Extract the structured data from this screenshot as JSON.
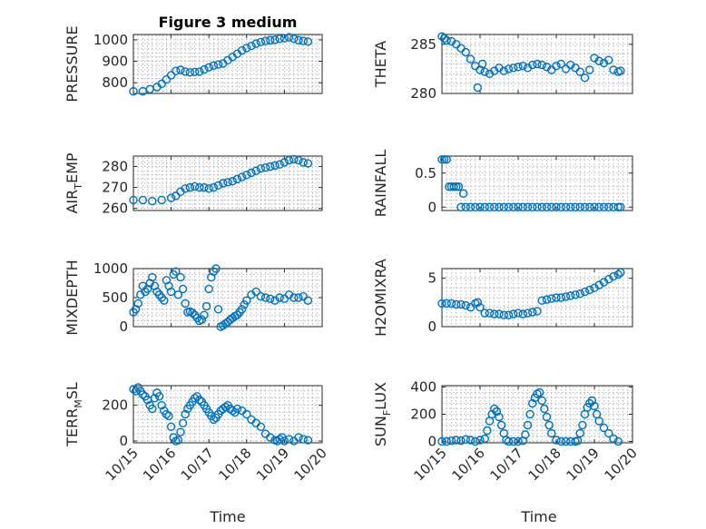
{
  "figure_title": "Figure 3 medium",
  "accent_color": "#0072BD",
  "chart_data": [
    {
      "type": "scatter",
      "ylabel": "PRESSURE",
      "ylabel_sub": "",
      "ylabel_tail": "",
      "ylim": [
        750,
        1025
      ],
      "yticks": [
        800,
        900,
        1000
      ],
      "xlim": [
        0,
        4
      ],
      "x": [
        0.0,
        0.2,
        0.35,
        0.5,
        0.6,
        0.7,
        0.8,
        0.9,
        1.0,
        1.1,
        1.2,
        1.3,
        1.4,
        1.5,
        1.6,
        1.7,
        1.8,
        1.9,
        2.0,
        2.1,
        2.2,
        2.3,
        2.4,
        2.5,
        2.6,
        2.7,
        2.8,
        2.9,
        3.0,
        3.1,
        3.2,
        3.3,
        3.4,
        3.5,
        3.6,
        3.7
      ],
      "y": [
        760,
        760,
        770,
        780,
        795,
        815,
        835,
        855,
        860,
        852,
        848,
        850,
        852,
        862,
        872,
        880,
        885,
        890,
        905,
        920,
        935,
        950,
        962,
        972,
        982,
        990,
        995,
        998,
        1000,
        1005,
        1008,
        1012,
        1005,
        998,
        995,
        992
      ]
    },
    {
      "type": "scatter",
      "ylabel": "THETA",
      "ylabel_sub": "",
      "ylabel_tail": "",
      "ylim": [
        280,
        286
      ],
      "yticks": [
        280,
        285
      ],
      "xlim": [
        0,
        4
      ],
      "x": [
        0.0,
        0.05,
        0.1,
        0.2,
        0.3,
        0.4,
        0.5,
        0.6,
        0.7,
        0.75,
        0.8,
        0.85,
        0.9,
        1.0,
        1.1,
        1.2,
        1.3,
        1.4,
        1.5,
        1.6,
        1.7,
        1.8,
        1.9,
        2.0,
        2.1,
        2.2,
        2.3,
        2.4,
        2.5,
        2.6,
        2.7,
        2.8,
        2.9,
        3.0,
        3.1,
        3.2,
        3.3,
        3.4,
        3.5,
        3.6,
        3.7,
        3.75
      ],
      "y": [
        285.8,
        285.6,
        285.4,
        285.3,
        285.0,
        284.6,
        284.2,
        283.5,
        282.8,
        280.6,
        282.4,
        283.0,
        282.2,
        282.0,
        282.3,
        282.6,
        282.3,
        282.5,
        282.6,
        282.7,
        282.8,
        282.6,
        282.9,
        283.0,
        282.9,
        282.7,
        282.4,
        282.8,
        283.0,
        282.5,
        282.9,
        282.6,
        282.2,
        281.6,
        282.4,
        283.6,
        283.3,
        283.1,
        283.4,
        282.4,
        282.2,
        282.3
      ]
    },
    {
      "type": "scatter",
      "ylabel": "AIR",
      "ylabel_sub": "T",
      "ylabel_tail": "EMP",
      "ylim": [
        259,
        285
      ],
      "yticks": [
        260,
        270,
        280
      ],
      "xlim": [
        0,
        4
      ],
      "x": [
        0.0,
        0.2,
        0.4,
        0.6,
        0.8,
        0.9,
        1.0,
        1.1,
        1.2,
        1.3,
        1.4,
        1.5,
        1.6,
        1.7,
        1.8,
        1.9,
        2.0,
        2.1,
        2.2,
        2.3,
        2.4,
        2.5,
        2.6,
        2.7,
        2.8,
        2.9,
        3.0,
        3.1,
        3.2,
        3.3,
        3.4,
        3.5,
        3.6,
        3.7
      ],
      "y": [
        264,
        264,
        263.5,
        264,
        265,
        266,
        268,
        269.5,
        270,
        270.5,
        270,
        270,
        269.5,
        270,
        271,
        272,
        272.5,
        273,
        274,
        275,
        276,
        277,
        278,
        279,
        279.5,
        280,
        280.5,
        281,
        282,
        283,
        283.5,
        283,
        282,
        281.5
      ]
    },
    {
      "type": "scatter",
      "ylabel": "RAINFALL",
      "ylabel_sub": "",
      "ylabel_tail": "",
      "ylim": [
        -0.05,
        0.75
      ],
      "yticks": [
        0,
        0.5
      ],
      "xlim": [
        0,
        4
      ],
      "x": [
        0.0,
        0.05,
        0.1,
        0.15,
        0.2,
        0.25,
        0.3,
        0.35,
        0.4,
        0.45,
        0.5,
        0.6,
        0.7,
        0.8,
        0.9,
        1.0,
        1.1,
        1.2,
        1.3,
        1.4,
        1.5,
        1.6,
        1.7,
        1.8,
        1.9,
        2.0,
        2.1,
        2.2,
        2.3,
        2.4,
        2.5,
        2.6,
        2.7,
        2.8,
        2.9,
        3.0,
        3.1,
        3.2,
        3.3,
        3.4,
        3.5,
        3.6,
        3.7,
        3.75
      ],
      "y": [
        0.7,
        0.7,
        0.7,
        0.3,
        0.3,
        0.3,
        0.3,
        0.3,
        0,
        0.2,
        0,
        0,
        0,
        0,
        0,
        0,
        0,
        0,
        0,
        0,
        0,
        0,
        0,
        0,
        0,
        0,
        0,
        0,
        0,
        0,
        0,
        0,
        0,
        0,
        0,
        0,
        0,
        0,
        0,
        0,
        0,
        0,
        0,
        0
      ]
    },
    {
      "type": "scatter",
      "ylabel": "MIXDEPTH",
      "ylabel_sub": "",
      "ylabel_tail": "",
      "ylim": [
        0,
        1000
      ],
      "yticks": [
        0,
        500,
        1000
      ],
      "xlim": [
        0,
        4
      ],
      "x": [
        0.0,
        0.05,
        0.1,
        0.15,
        0.2,
        0.25,
        0.3,
        0.35,
        0.4,
        0.45,
        0.5,
        0.55,
        0.6,
        0.65,
        0.7,
        0.75,
        0.8,
        0.85,
        0.9,
        0.95,
        1.0,
        1.05,
        1.1,
        1.15,
        1.2,
        1.25,
        1.3,
        1.35,
        1.4,
        1.45,
        1.5,
        1.55,
        1.6,
        1.65,
        1.7,
        1.75,
        1.8,
        1.85,
        1.9,
        1.95,
        2.0,
        2.05,
        2.1,
        2.15,
        2.2,
        2.25,
        2.3,
        2.35,
        2.4,
        2.5,
        2.6,
        2.7,
        2.8,
        2.9,
        3.0,
        3.1,
        3.2,
        3.3,
        3.4,
        3.5,
        3.6,
        3.7
      ],
      "y": [
        250,
        300,
        400,
        550,
        700,
        600,
        650,
        750,
        850,
        700,
        600,
        550,
        500,
        450,
        800,
        700,
        600,
        900,
        950,
        550,
        850,
        650,
        400,
        250,
        260,
        240,
        200,
        150,
        100,
        120,
        200,
        350,
        650,
        850,
        950,
        1000,
        300,
        0,
        20,
        50,
        80,
        120,
        150,
        180,
        200,
        250,
        300,
        380,
        450,
        550,
        600,
        520,
        500,
        480,
        450,
        500,
        480,
        550,
        500,
        500,
        520,
        450
      ]
    },
    {
      "type": "scatter",
      "ylabel": "H2OMIXRA",
      "ylabel_sub": "",
      "ylabel_tail": "",
      "ylim": [
        0,
        6
      ],
      "yticks": [
        0,
        5
      ],
      "xlim": [
        0,
        4
      ],
      "x": [
        0.0,
        0.1,
        0.2,
        0.3,
        0.4,
        0.5,
        0.6,
        0.7,
        0.75,
        0.8,
        0.9,
        1.0,
        1.1,
        1.2,
        1.3,
        1.4,
        1.5,
        1.6,
        1.7,
        1.8,
        1.9,
        2.0,
        2.1,
        2.2,
        2.3,
        2.4,
        2.5,
        2.6,
        2.7,
        2.8,
        2.9,
        3.0,
        3.1,
        3.2,
        3.3,
        3.4,
        3.5,
        3.6,
        3.7,
        3.75
      ],
      "y": [
        2.4,
        2.4,
        2.4,
        2.3,
        2.3,
        2.2,
        2.0,
        2.4,
        2.5,
        2.0,
        1.4,
        1.4,
        1.3,
        1.3,
        1.2,
        1.2,
        1.3,
        1.4,
        1.3,
        1.4,
        1.5,
        1.6,
        2.7,
        2.8,
        2.9,
        3.0,
        3.0,
        3.1,
        3.2,
        3.3,
        3.4,
        3.6,
        3.8,
        4.0,
        4.3,
        4.6,
        4.9,
        5.2,
        5.4,
        5.6
      ]
    },
    {
      "type": "scatter",
      "ylabel": "TERR",
      "ylabel_sub": "M",
      "ylabel_tail": "SL",
      "ylim": [
        -10,
        310
      ],
      "yticks": [
        0,
        200
      ],
      "xlim": [
        0,
        4
      ],
      "x": [
        0.0,
        0.05,
        0.1,
        0.15,
        0.2,
        0.25,
        0.3,
        0.35,
        0.4,
        0.45,
        0.5,
        0.55,
        0.6,
        0.65,
        0.7,
        0.75,
        0.8,
        0.85,
        0.9,
        0.95,
        1.0,
        1.05,
        1.1,
        1.15,
        1.2,
        1.25,
        1.3,
        1.35,
        1.4,
        1.45,
        1.5,
        1.55,
        1.6,
        1.65,
        1.7,
        1.75,
        1.8,
        1.85,
        1.9,
        1.95,
        2.0,
        2.05,
        2.1,
        2.15,
        2.2,
        2.3,
        2.4,
        2.5,
        2.6,
        2.7,
        2.8,
        2.9,
        3.0,
        3.05,
        3.1,
        3.15,
        3.2,
        3.3,
        3.4,
        3.5,
        3.6,
        3.7
      ],
      "y": [
        290,
        280,
        300,
        280,
        260,
        250,
        230,
        200,
        180,
        240,
        270,
        250,
        200,
        170,
        150,
        140,
        80,
        20,
        0,
        5,
        50,
        100,
        150,
        180,
        200,
        220,
        240,
        250,
        230,
        220,
        200,
        180,
        160,
        140,
        120,
        130,
        150,
        170,
        180,
        190,
        200,
        180,
        170,
        160,
        180,
        170,
        150,
        120,
        100,
        80,
        40,
        20,
        5,
        0,
        10,
        20,
        0,
        10,
        0,
        20,
        10,
        5
      ]
    },
    {
      "type": "scatter",
      "ylabel": "SUN",
      "ylabel_sub": "F",
      "ylabel_tail": "LUX",
      "ylim": [
        -10,
        410
      ],
      "yticks": [
        0,
        200,
        400
      ],
      "xlim": [
        0,
        4
      ],
      "x": [
        0.0,
        0.1,
        0.2,
        0.3,
        0.4,
        0.5,
        0.6,
        0.7,
        0.8,
        0.9,
        0.95,
        1.0,
        1.05,
        1.1,
        1.15,
        1.2,
        1.25,
        1.3,
        1.35,
        1.4,
        1.5,
        1.6,
        1.7,
        1.75,
        1.8,
        1.85,
        1.9,
        1.95,
        2.0,
        2.05,
        2.1,
        2.15,
        2.2,
        2.25,
        2.3,
        2.4,
        2.5,
        2.6,
        2.7,
        2.8,
        2.85,
        2.9,
        2.95,
        3.0,
        3.05,
        3.1,
        3.15,
        3.2,
        3.25,
        3.3,
        3.4,
        3.5,
        3.6,
        3.7
      ],
      "y": [
        0,
        0,
        5,
        10,
        5,
        15,
        10,
        0,
        10,
        20,
        80,
        150,
        200,
        240,
        220,
        180,
        120,
        60,
        10,
        0,
        0,
        0,
        5,
        50,
        120,
        200,
        280,
        320,
        350,
        360,
        300,
        240,
        180,
        120,
        60,
        10,
        0,
        0,
        0,
        0,
        5,
        60,
        120,
        200,
        250,
        280,
        300,
        260,
        200,
        150,
        100,
        60,
        20,
        0
      ]
    }
  ],
  "x_tick_labels": [
    "10/15",
    "10/16",
    "10/17",
    "10/18",
    "10/19",
    "10/20"
  ],
  "xlabel": "Time"
}
